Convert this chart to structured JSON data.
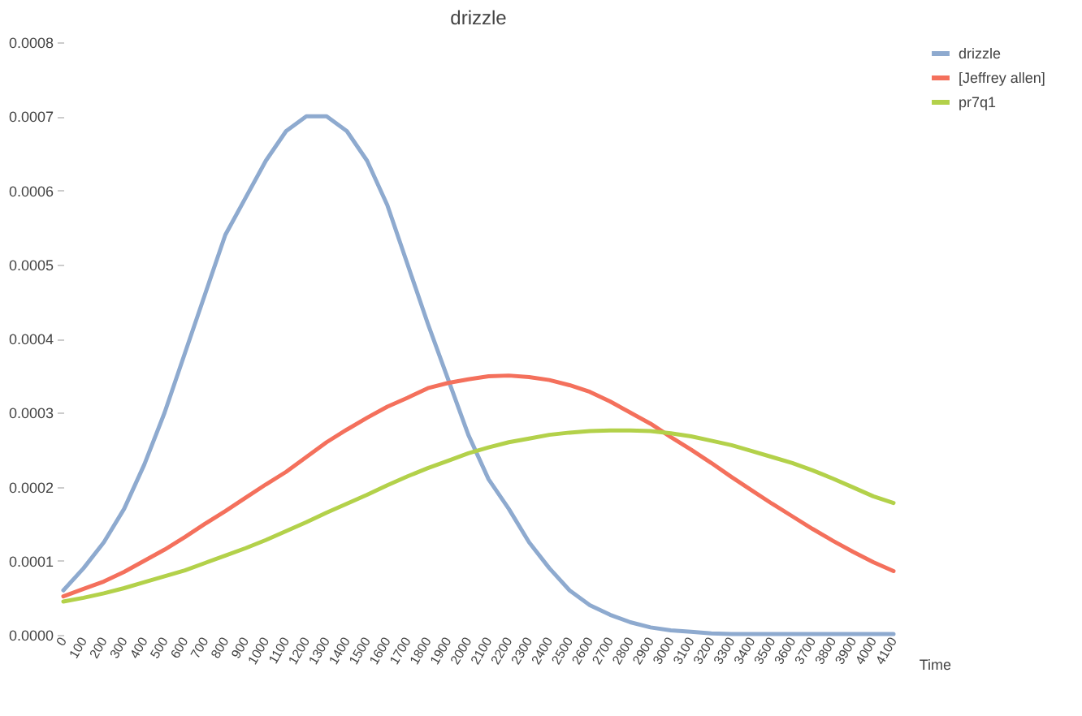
{
  "chart_data": {
    "type": "line",
    "title": "drizzle",
    "xlabel": "Time",
    "categories": [
      "0",
      "100",
      "200",
      "300",
      "400",
      "500",
      "600",
      "700",
      "800",
      "900",
      "1000",
      "1100",
      "1200",
      "1300",
      "1400",
      "1500",
      "1600",
      "1700",
      "1800",
      "1900",
      "2000",
      "2100",
      "2200",
      "2300",
      "2400",
      "2500",
      "2600",
      "2700",
      "2800",
      "2900",
      "3000",
      "3100",
      "3200",
      "3300",
      "3400",
      "3500",
      "3600",
      "3700",
      "3800",
      "3900",
      "4000",
      "4100"
    ],
    "series": [
      {
        "name": "drizzle",
        "color": "#8eaacf",
        "values": [
          6e-05,
          9e-05,
          0.000125,
          0.00017,
          0.00023,
          0.0003,
          0.00038,
          0.00046,
          0.00054,
          0.00059,
          0.00064,
          0.00068,
          0.0007,
          0.0007,
          0.00068,
          0.00064,
          0.00058,
          0.0005,
          0.00042,
          0.000345,
          0.00027,
          0.00021,
          0.00017,
          0.000125,
          9e-05,
          6e-05,
          4e-05,
          2.7e-05,
          1.7e-05,
          1e-05,
          6e-06,
          4e-06,
          2e-06,
          1e-06,
          1e-06,
          1e-06,
          1e-06,
          1e-06,
          1e-06,
          1e-06,
          1e-06,
          1e-06
        ]
      },
      {
        "name": "[Jeffrey allen]",
        "color": "#f4705c",
        "values": [
          5.2e-05,
          6.2e-05,
          7.2e-05,
          8.5e-05,
          0.0001,
          0.000115,
          0.000132,
          0.00015,
          0.000167,
          0.000185,
          0.000203,
          0.00022,
          0.00024,
          0.00026,
          0.000277,
          0.000293,
          0.000308,
          0.00032,
          0.000333,
          0.00034,
          0.000345,
          0.000349,
          0.00035,
          0.000348,
          0.000344,
          0.000337,
          0.000328,
          0.000315,
          0.0003,
          0.000285,
          0.000267,
          0.00025,
          0.000232,
          0.000213,
          0.000195,
          0.000177,
          0.00016,
          0.000143,
          0.000127,
          0.000112,
          9.8e-05,
          8.6e-05
        ]
      },
      {
        "name": "pr7q1",
        "color": "#b3d14a",
        "values": [
          4.5e-05,
          5e-05,
          5.6e-05,
          6.3e-05,
          7.1e-05,
          7.9e-05,
          8.7e-05,
          9.7e-05,
          0.000107,
          0.000117,
          0.000128,
          0.00014,
          0.000152,
          0.000165,
          0.000177,
          0.000189,
          0.000202,
          0.000214,
          0.000225,
          0.000235,
          0.000245,
          0.000253,
          0.00026,
          0.000265,
          0.00027,
          0.000273,
          0.000275,
          0.000276,
          0.000276,
          0.000275,
          0.000272,
          0.000268,
          0.000262,
          0.000256,
          0.000248,
          0.00024,
          0.000232,
          0.000222,
          0.000211,
          0.000199,
          0.000187,
          0.000178
        ]
      }
    ],
    "ylim": [
      0,
      0.0008
    ],
    "yticks": [
      {
        "value": 0,
        "label": "0.0000"
      },
      {
        "value": 0.0001,
        "label": "0.0001"
      },
      {
        "value": 0.0002,
        "label": "0.0002"
      },
      {
        "value": 0.0003,
        "label": "0.0003"
      },
      {
        "value": 0.0004,
        "label": "0.0004"
      },
      {
        "value": 0.0005,
        "label": "0.0005"
      },
      {
        "value": 0.0006,
        "label": "0.0006"
      },
      {
        "value": 0.0007,
        "label": "0.0007"
      },
      {
        "value": 0.0008,
        "label": "0.0008"
      }
    ],
    "grid": false,
    "legend": "top right",
    "marker": "none",
    "line_style": "solid"
  }
}
